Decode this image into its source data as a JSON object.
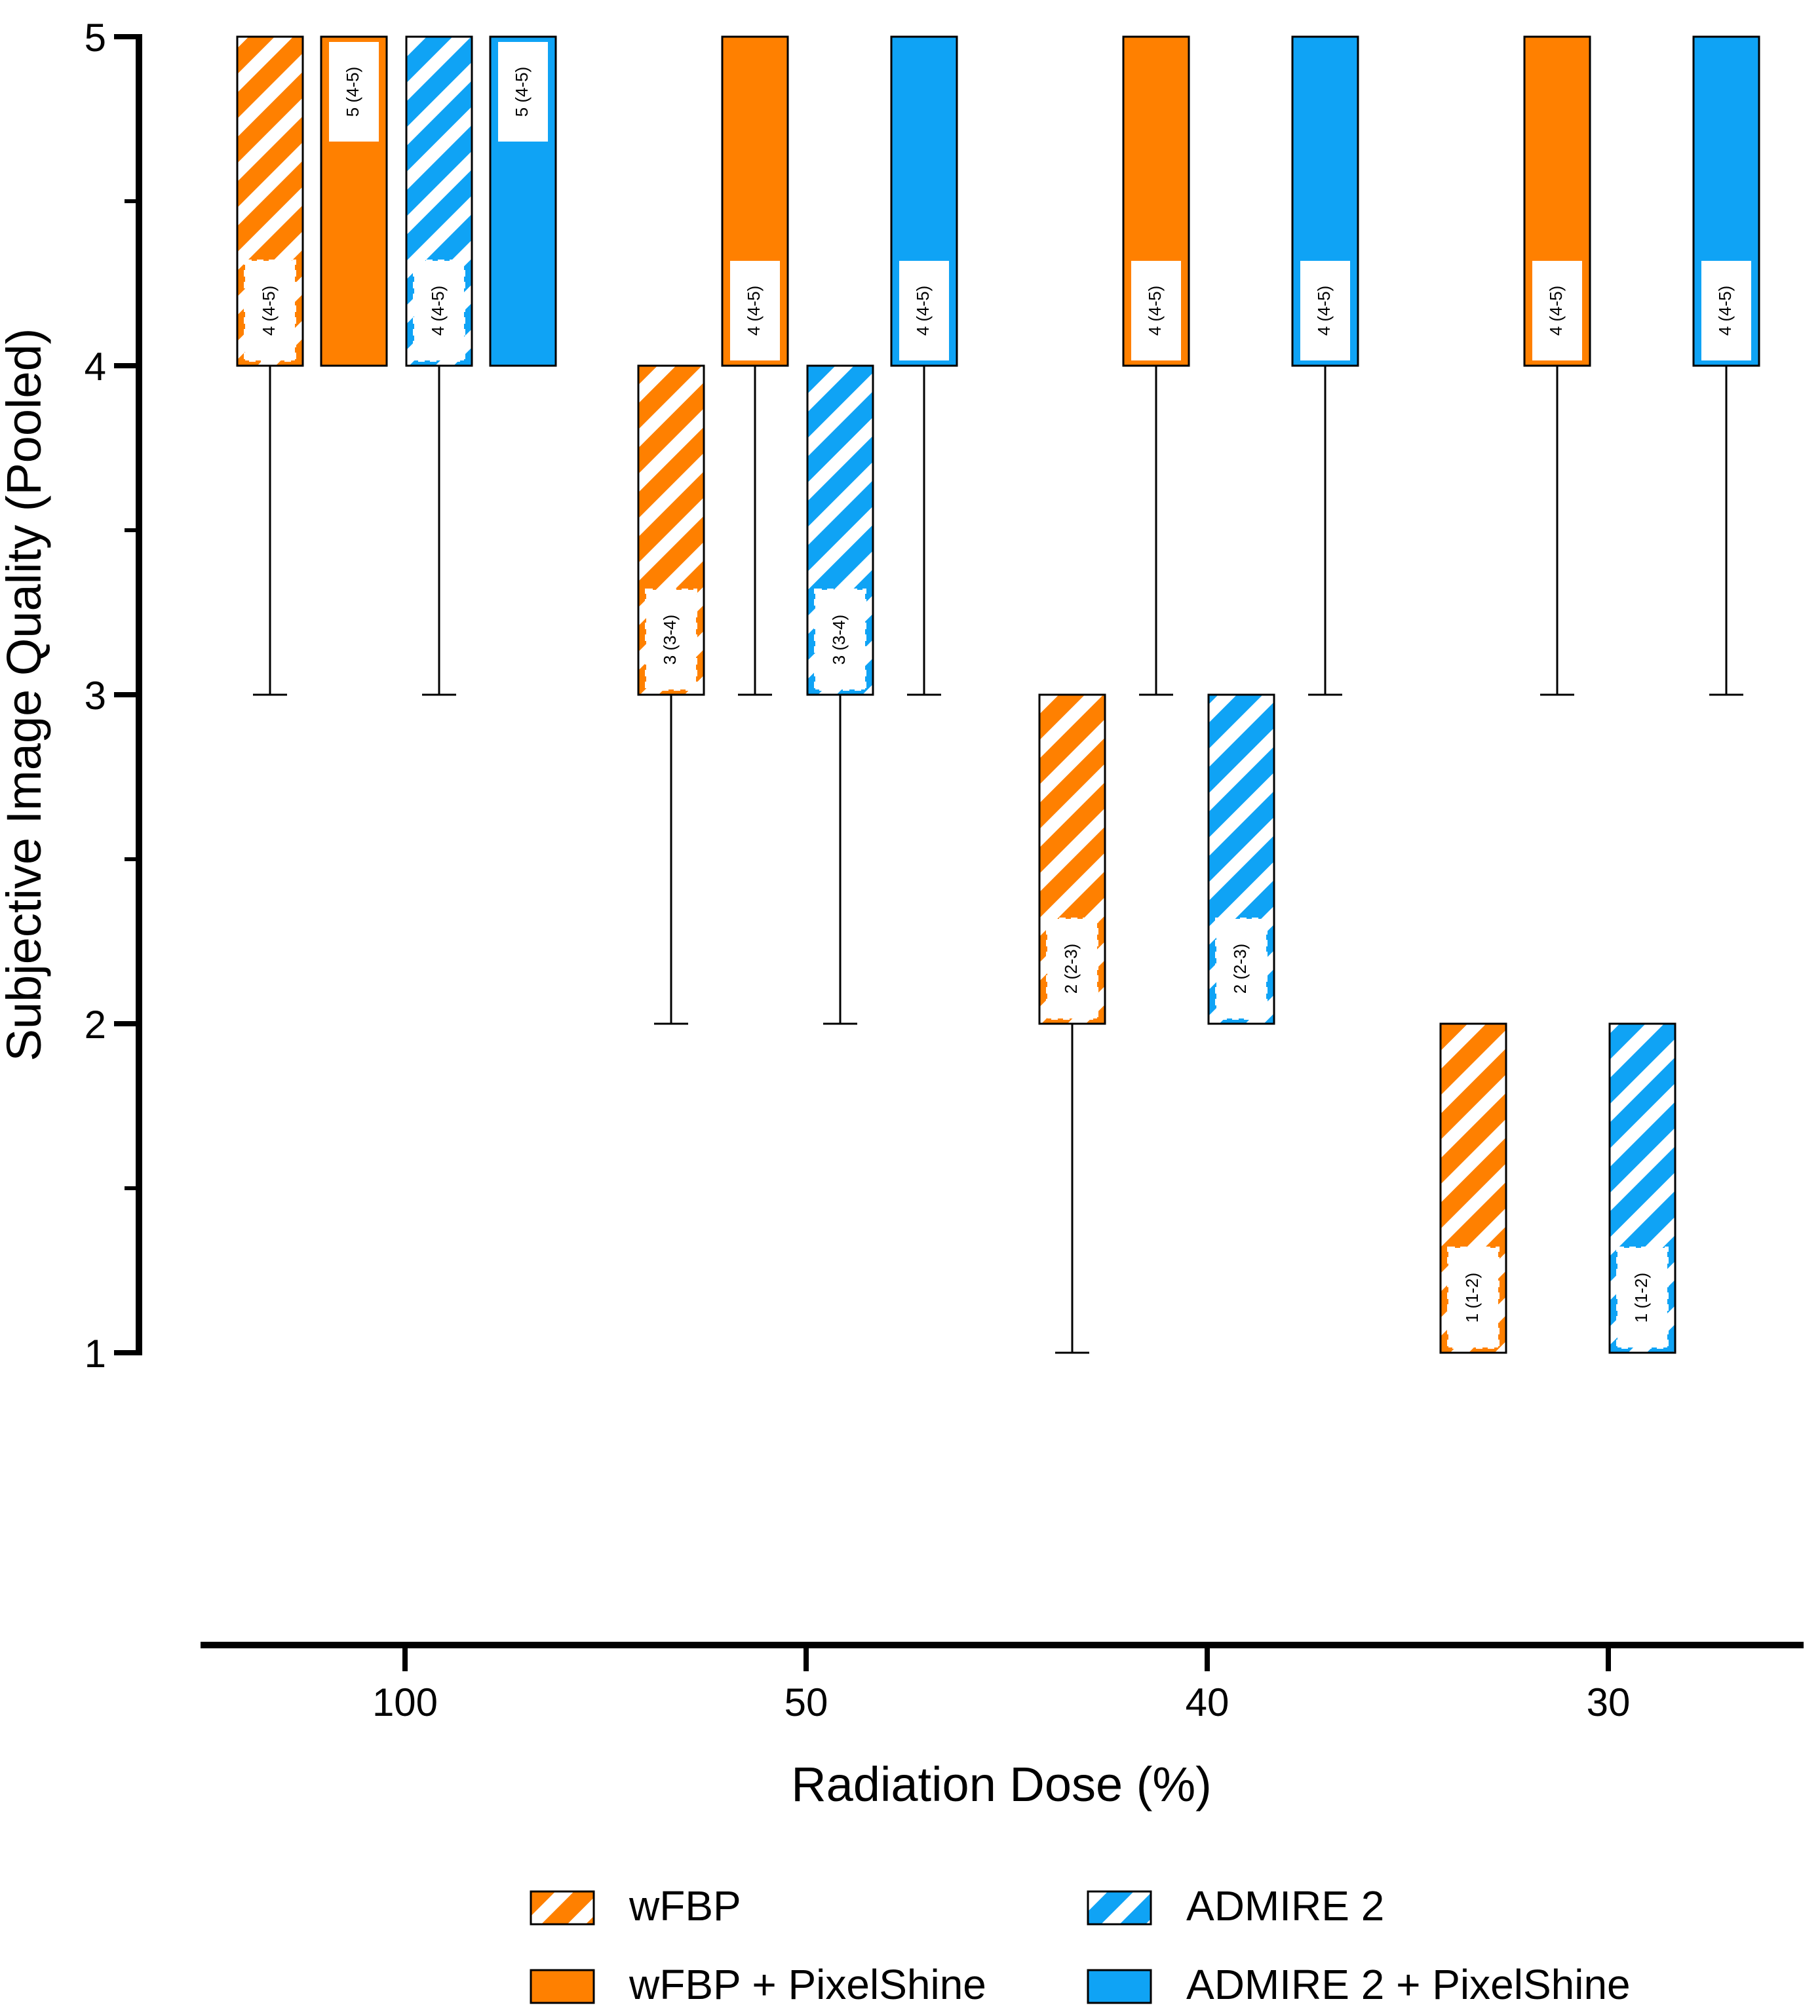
{
  "chart_data": {
    "type": "box",
    "title": "",
    "xlabel": "Radiation Dose (%)",
    "ylabel": "Subjective Image Quality (Pooled)",
    "ylim": [
      1,
      5
    ],
    "yticks": [
      "1",
      "2",
      "3",
      "4",
      "5"
    ],
    "categories": [
      "100",
      "50",
      "40",
      "30"
    ],
    "colors": {
      "orange": "#FF8000",
      "blue": "#0FA3F5"
    },
    "series": [
      {
        "name": "wFBP",
        "color": "#FF8000",
        "pattern": "hatch",
        "boxes": [
          {
            "min": 3,
            "q1": 4,
            "median": 4,
            "q3": 5,
            "max": 5,
            "label": "4 (4-5)"
          },
          {
            "min": 2,
            "q1": 3,
            "median": 3,
            "q3": 4,
            "max": 4,
            "label": "3 (3-4)"
          },
          {
            "min": 1,
            "q1": 2,
            "median": 2,
            "q3": 3,
            "max": 3,
            "label": "2 (2-3)"
          },
          {
            "min": 1,
            "q1": 1,
            "median": 1,
            "q3": 2,
            "max": 2,
            "label": "1 (1-2)"
          }
        ]
      },
      {
        "name": "wFBP + PixelShine",
        "color": "#FF8000",
        "pattern": "solid",
        "boxes": [
          {
            "min": 4,
            "q1": 4,
            "median": 5,
            "q3": 5,
            "max": 5,
            "label": "5 (4-5)"
          },
          {
            "min": 3,
            "q1": 4,
            "median": 4,
            "q3": 5,
            "max": 5,
            "label": "4 (4-5)"
          },
          {
            "min": 3,
            "q1": 4,
            "median": 4,
            "q3": 5,
            "max": 5,
            "label": "4 (4-5)"
          },
          {
            "min": 3,
            "q1": 4,
            "median": 4,
            "q3": 5,
            "max": 5,
            "label": "4 (4-5)"
          }
        ]
      },
      {
        "name": "ADMIRE 2",
        "color": "#0FA3F5",
        "pattern": "hatch",
        "boxes": [
          {
            "min": 3,
            "q1": 4,
            "median": 4,
            "q3": 5,
            "max": 5,
            "label": "4 (4-5)"
          },
          {
            "min": 2,
            "q1": 3,
            "median": 3,
            "q3": 4,
            "max": 4,
            "label": "3 (3-4)"
          },
          {
            "min": 2,
            "q1": 2,
            "median": 2,
            "q3": 3,
            "max": 3,
            "label": "2 (2-3)"
          },
          {
            "min": 1,
            "q1": 1,
            "median": 1,
            "q3": 2,
            "max": 2,
            "label": "1 (1-2)"
          }
        ]
      },
      {
        "name": "ADMIRE 2 + PixelShine",
        "color": "#0FA3F5",
        "pattern": "solid",
        "boxes": [
          {
            "min": 4,
            "q1": 4,
            "median": 5,
            "q3": 5,
            "max": 5,
            "label": "5 (4-5)"
          },
          {
            "min": 3,
            "q1": 4,
            "median": 4,
            "q3": 5,
            "max": 5,
            "label": "4 (4-5)"
          },
          {
            "min": 3,
            "q1": 4,
            "median": 4,
            "q3": 5,
            "max": 5,
            "label": "4 (4-5)"
          },
          {
            "min": 3,
            "q1": 4,
            "median": 4,
            "q3": 5,
            "max": 5,
            "label": "4 (4-5)"
          }
        ]
      }
    ],
    "legend": {
      "position": "bottom",
      "entries": [
        "wFBP",
        "ADMIRE 2",
        "wFBP + PixelShine",
        "ADMIRE 2 + PixelShine"
      ]
    }
  }
}
